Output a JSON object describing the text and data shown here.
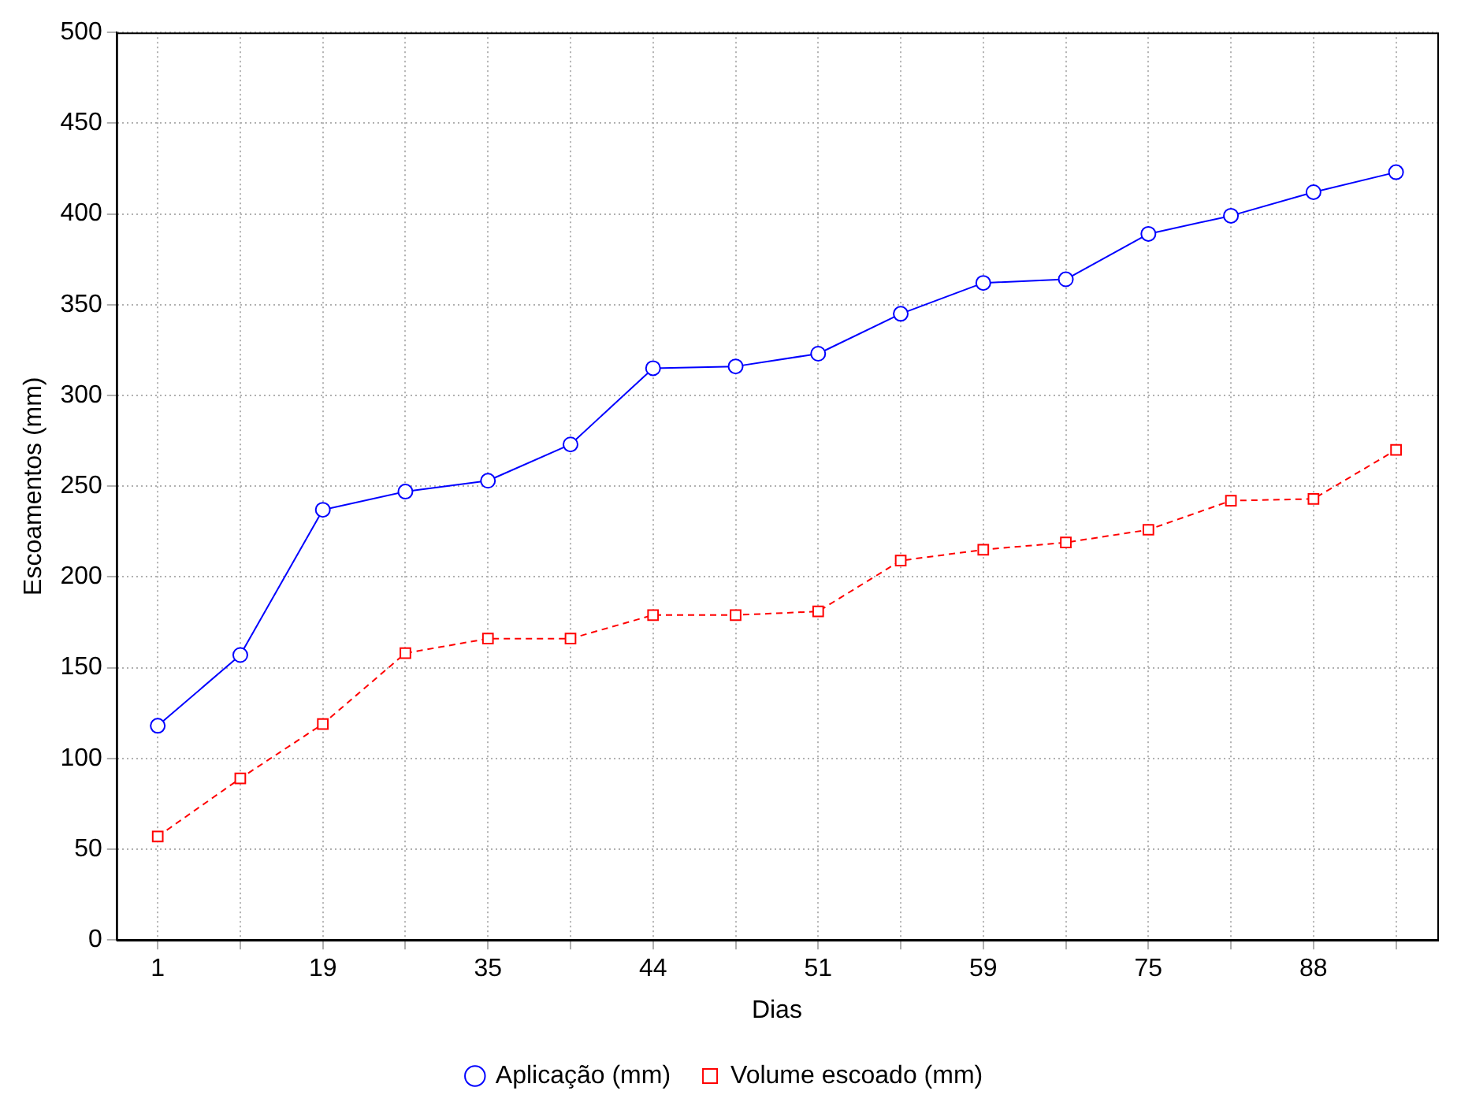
{
  "chart_data": {
    "type": "line",
    "xlabel": "Dias",
    "ylabel": "Escoamentos (mm)",
    "categories": [
      "1",
      null,
      "19",
      null,
      "35",
      null,
      "44",
      null,
      "51",
      null,
      "59",
      null,
      "75",
      null,
      "88",
      null
    ],
    "series": [
      {
        "name": "Aplicação (mm)",
        "color": "#0000ff",
        "marker": "circle",
        "line_style": "solid",
        "values": [
          118,
          157,
          237,
          247,
          253,
          273,
          315,
          316,
          323,
          345,
          362,
          364,
          389,
          399,
          412,
          423
        ]
      },
      {
        "name": "Volume escoado (mm)",
        "color": "#ff0000",
        "marker": "square",
        "line_style": "dashed",
        "values": [
          57,
          89,
          119,
          158,
          166,
          166,
          179,
          179,
          181,
          209,
          215,
          219,
          226,
          242,
          243,
          270
        ]
      }
    ],
    "ylim": [
      0,
      500
    ],
    "yticks": [
      0,
      50,
      100,
      150,
      200,
      250,
      300,
      350,
      400,
      450,
      500
    ],
    "grid": true,
    "legend": "bottom"
  }
}
